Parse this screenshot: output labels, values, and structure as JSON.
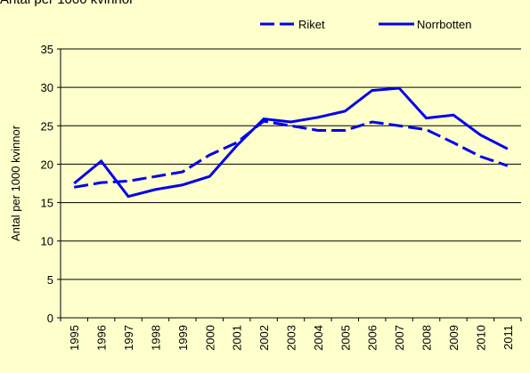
{
  "chart_data": {
    "type": "line",
    "title": "Antal per 1000 kvinnor",
    "y_label": "Antal per 1000 kvinnor",
    "categories": [
      "1995",
      "1996",
      "1997",
      "1998",
      "1999",
      "2000",
      "2001",
      "2002",
      "2003",
      "2004",
      "2005",
      "2006",
      "2007",
      "2008",
      "2009",
      "2010",
      "2011"
    ],
    "series": [
      {
        "name": "Riket",
        "color": "#0000ee",
        "dashed": true,
        "values": [
          17.0,
          17.6,
          17.8,
          18.4,
          19.0,
          21.2,
          22.8,
          25.6,
          25.0,
          24.4,
          24.4,
          25.5,
          25.0,
          24.5,
          22.8,
          21.0,
          19.8
        ]
      },
      {
        "name": "Norrbotten",
        "color": "#0000ee",
        "dashed": false,
        "values": [
          17.5,
          20.4,
          15.8,
          16.7,
          17.3,
          18.4,
          22.4,
          25.9,
          25.5,
          26.1,
          26.9,
          29.6,
          29.9,
          26.0,
          26.4,
          23.8,
          22.0
        ]
      }
    ],
    "ylim": [
      0,
      35
    ],
    "yticks": [
      0,
      5,
      10,
      15,
      20,
      25,
      30,
      35
    ],
    "grid": true,
    "legend": "top-right"
  }
}
